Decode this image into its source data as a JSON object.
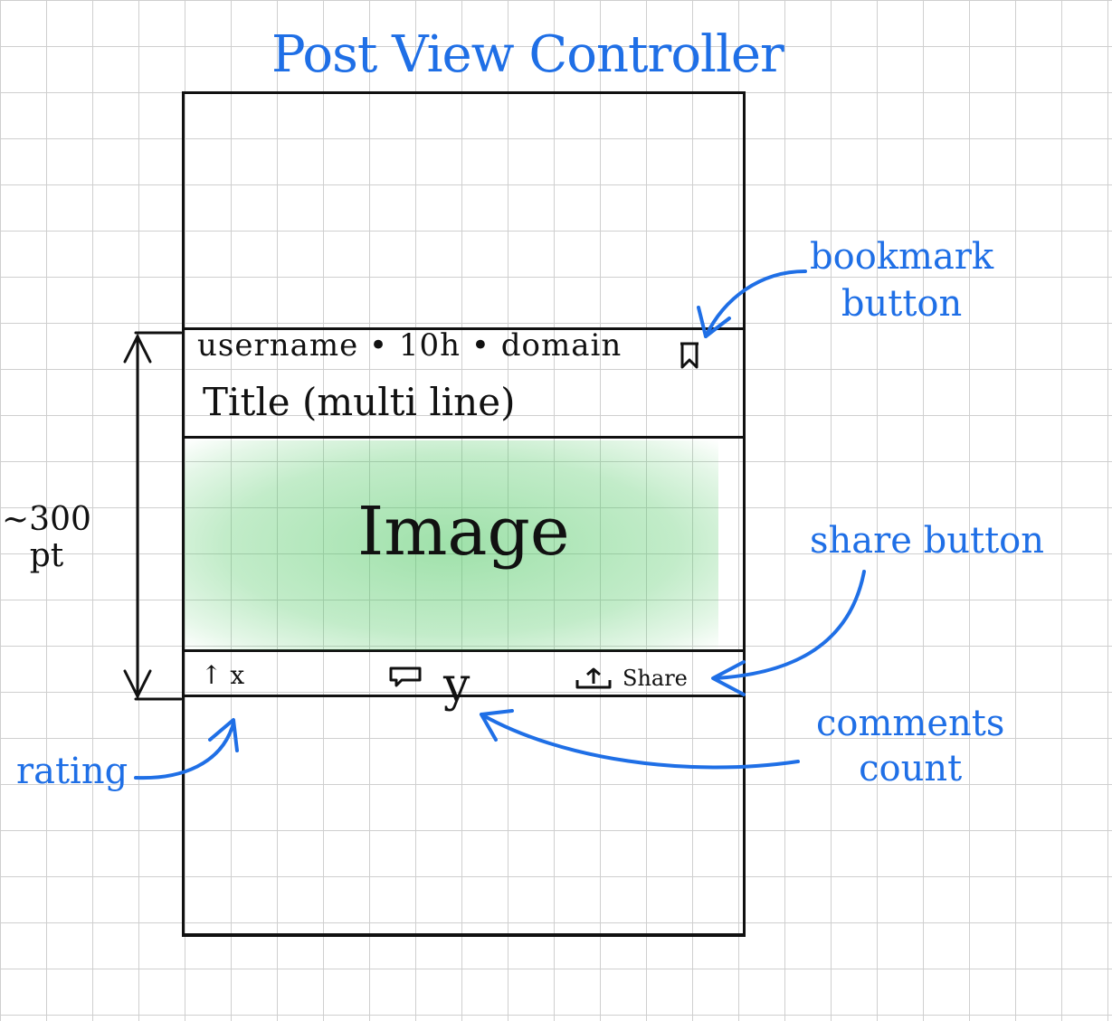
{
  "title": "Post View Controller",
  "post": {
    "meta": "username • 10h • domain",
    "title": "Title (multi line)",
    "image_label": "Image",
    "rating": "↑ x",
    "comment_count": "y",
    "share_label": "Share"
  },
  "dimension": {
    "value": "~300",
    "unit": "pt"
  },
  "annotations": {
    "bookmark_line1": "bookmark",
    "bookmark_line2": "button",
    "share": "share button",
    "comments_line1": "comments",
    "comments_line2": "count",
    "rating": "rating"
  },
  "colors": {
    "annotation": "#1f6fe6",
    "image_fill": "#50c864",
    "ink": "#111111"
  }
}
